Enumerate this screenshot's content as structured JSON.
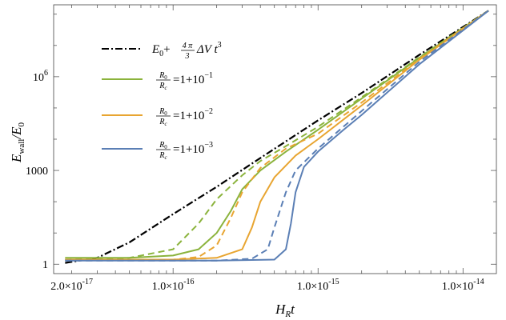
{
  "chart_data": {
    "type": "line",
    "xscale": "log",
    "yscale": "log",
    "xlim": [
      1.5e-17,
      1.7e-14
    ],
    "ylim": [
      0.5,
      200000000.0
    ],
    "xlabel": "H_R t",
    "ylabel": "E_wall/E_0",
    "xticks": [
      {
        "value": 2e-17,
        "label": "2.0×10^-17"
      },
      {
        "value": 1e-16,
        "label": "1.0×10^-16"
      },
      {
        "value": 1e-15,
        "label": "1.0×10^-15"
      },
      {
        "value": 1e-14,
        "label": "1.0×10^-14"
      }
    ],
    "yticks": [
      {
        "value": 1,
        "label": "1"
      },
      {
        "value": 1000,
        "label": "1000"
      },
      {
        "value": 1000000,
        "label": "10^6"
      }
    ],
    "legend_position": "top-left",
    "series": [
      {
        "name": "E0 + (4π/3) ΔV t^3",
        "style": "dashdot",
        "color": "#000000",
        "x": [
          1.8e-17,
          3e-17,
          5e-17,
          1e-16,
          2e-16,
          4e-16,
          1e-15,
          2e-15,
          5e-15,
          1.5e-14
        ],
        "y": [
          1.1,
          1.6,
          5,
          40,
          300,
          2500,
          40000,
          300000,
          5000000,
          130000000
        ]
      },
      {
        "name": "R0/Rc = 1+10^-1",
        "style": "solid",
        "color": "#8bb33c",
        "x": [
          1.8e-17,
          5e-17,
          1e-16,
          1.5e-16,
          2e-16,
          2.5e-16,
          3e-16,
          4e-16,
          6e-16,
          1e-15,
          2e-15,
          5e-15,
          1.5e-14
        ],
        "y": [
          1.6,
          1.6,
          1.9,
          3,
          10,
          50,
          250,
          1000,
          4000,
          20000,
          200000,
          4000000,
          130000000
        ]
      },
      {
        "name": "R0/Rc = 1+10^-1",
        "style": "dashed",
        "color": "#8bb33c",
        "x": [
          1.8e-17,
          5e-17,
          1e-16,
          1.5e-16,
          2e-16,
          3e-16,
          4e-16,
          6e-16,
          1e-15,
          2e-15,
          5e-15,
          1.5e-14
        ],
        "y": [
          1.4,
          1.6,
          3,
          20,
          120,
          700,
          2000,
          6000,
          25000,
          220000,
          4200000,
          130000000
        ]
      },
      {
        "name": "R0/Rc = 1+10^-2",
        "style": "solid",
        "color": "#e8a531",
        "x": [
          1.8e-17,
          1e-16,
          2e-16,
          3e-16,
          3.5e-16,
          4e-16,
          5e-16,
          7e-16,
          1e-15,
          2e-15,
          5e-15,
          1.5e-14
        ],
        "y": [
          1.4,
          1.4,
          1.6,
          3,
          15,
          100,
          600,
          3000,
          10000,
          120000,
          3500000,
          130000000
        ]
      },
      {
        "name": "R0/Rc = 1+10^-2",
        "style": "dashed",
        "color": "#e8a531",
        "x": [
          1.8e-17,
          1e-16,
          1.5e-16,
          2e-16,
          2.5e-16,
          3e-16,
          4e-16,
          6e-16,
          1e-15,
          2e-15,
          5e-15,
          1.5e-14
        ],
        "y": [
          1.4,
          1.4,
          1.7,
          4,
          30,
          200,
          1200,
          5000,
          15000,
          150000,
          3700000,
          130000000
        ]
      },
      {
        "name": "R0/Rc = 1+10^-3",
        "style": "solid",
        "color": "#5b7fb5",
        "x": [
          1.8e-17,
          2e-16,
          5e-16,
          6e-16,
          6.5e-16,
          7e-16,
          8e-16,
          1e-15,
          1.5e-15,
          2e-15,
          5e-15,
          1.5e-14
        ],
        "y": [
          1.3,
          1.3,
          1.4,
          3,
          20,
          200,
          1300,
          4000,
          20000,
          60000,
          2500000,
          130000000
        ]
      },
      {
        "name": "R0/Rc = 1+10^-3",
        "style": "dashed",
        "color": "#5b7fb5",
        "x": [
          1.8e-17,
          2e-16,
          3.5e-16,
          4.5e-16,
          5e-16,
          6e-16,
          7e-16,
          1e-15,
          2e-15,
          5e-15,
          1.5e-14
        ],
        "y": [
          1.3,
          1.3,
          1.5,
          3,
          15,
          200,
          1000,
          5000,
          80000,
          3000000,
          130000000
        ]
      }
    ]
  }
}
